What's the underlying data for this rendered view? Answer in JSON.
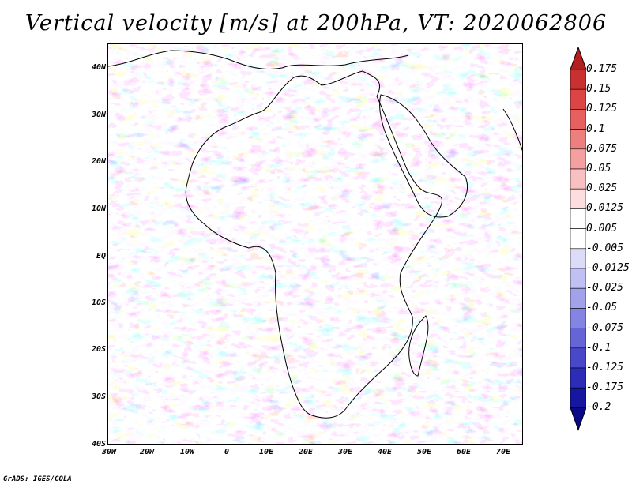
{
  "title": "Vertical velocity [m/s] at 200hPa, VT: 2020062806",
  "credit": "GrADS: IGES/COLA",
  "map": {
    "lat_ticks": [
      "40N",
      "30N",
      "20N",
      "10N",
      "EQ",
      "10S",
      "20S",
      "30S",
      "40S"
    ],
    "lon_ticks": [
      "30W",
      "20W",
      "10W",
      "0",
      "10E",
      "20E",
      "30E",
      "40E",
      "50E",
      "60E",
      "70E"
    ]
  },
  "colorbar": {
    "labels": [
      "0.175",
      "0.15",
      "0.125",
      "0.1",
      "0.075",
      "0.05",
      "0.025",
      "0.0125",
      "0.005",
      "-0.005",
      "-0.0125",
      "-0.025",
      "-0.05",
      "-0.075",
      "-0.1",
      "-0.125",
      "-0.175",
      "-0.2"
    ],
    "colors": [
      "#b31f1f",
      "#c93030",
      "#db4545",
      "#e66060",
      "#ee7f7f",
      "#f4a0a0",
      "#f8c0c0",
      "#fcdede",
      "#ffffff",
      "#ffffff",
      "#dcdcf8",
      "#c0c0f2",
      "#a2a2ea",
      "#8484e2",
      "#6565d6",
      "#4848c8",
      "#2c2cb6",
      "#1616a0",
      "#0a0a88"
    ]
  }
}
